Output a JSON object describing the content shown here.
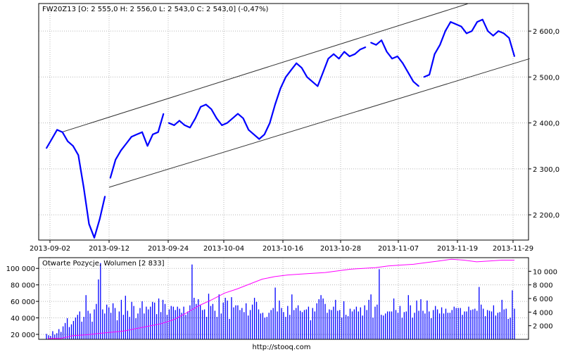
{
  "chart_data": [
    {
      "type": "line",
      "title": "FW20Z13 [O: 2 555,0  H: 2 556,0  L: 2 543,0  C: 2 543,0] (-0,47%)",
      "x_tick_labels": [
        "2013-09-02",
        "2013-09-12",
        "2013-09-24",
        "2013-10-04",
        "2013-10-16",
        "2013-10-28",
        "2013-11-07",
        "2013-11-19",
        "2013-11-29"
      ],
      "y_tick_labels": [
        "2 600,0",
        "2 500,0",
        "2 400,0",
        "2 300,0",
        "2 200,0"
      ],
      "y_ticks": [
        2600,
        2500,
        2400,
        2300,
        2200
      ],
      "ylim": [
        2145,
        2660
      ],
      "grid": true,
      "series": [
        {
          "values": [
            2345,
            2365,
            2385,
            2380,
            2360,
            2350,
            2330,
            2260,
            2180,
            2150,
            2190,
            2240,
            2280,
            2320,
            2340,
            2355,
            2370,
            2375,
            2380,
            2350,
            2375,
            2380,
            2420,
            2400,
            2395,
            2405,
            2395,
            2390,
            2410,
            2435,
            2440,
            2430,
            2410,
            2395,
            2400,
            2410,
            2420,
            2410,
            2385,
            2375,
            2365,
            2375,
            2400,
            2440,
            2475,
            2500,
            2515,
            2530,
            2520,
            2500,
            2490,
            2480,
            2510,
            2540,
            2550,
            2540,
            2555,
            2545,
            2550,
            2560,
            2565,
            2575,
            2570,
            2580,
            2555,
            2540,
            2545,
            2530,
            2510,
            2490,
            2480,
            2500,
            2505,
            2550,
            2570,
            2600,
            2620,
            2615,
            2610,
            2595,
            2600,
            2620,
            2625,
            2600,
            2590,
            2600,
            2595,
            2585,
            2545
          ],
          "gaps_after": [
            11,
            22,
            60,
            70
          ],
          "color": "#0000ff"
        }
      ],
      "channel_lines": [
        {
          "from": [
            "2013-09-04",
            2380
          ],
          "to": [
            "2013-11-21",
            2660
          ]
        },
        {
          "from": [
            "2013-09-12",
            2260
          ],
          "to": [
            "2013-12-02",
            2540
          ]
        }
      ]
    },
    {
      "type": "bar",
      "title": "Otwarte Pozycje, Wolumen [2 833]",
      "left_tick_labels": [
        "100 000",
        "80 000",
        "60 000",
        "40 000",
        "20 000"
      ],
      "left_ticks": [
        100000,
        80000,
        60000,
        40000,
        20000
      ],
      "left_lim": [
        14000,
        113000
      ],
      "right_tick_labels": [
        "10 000",
        "8 000",
        "6 000",
        "4 000",
        "2 000"
      ],
      "right_ticks": [
        10000,
        8000,
        6000,
        4000,
        2000
      ],
      "right_lim": [
        0,
        12000
      ],
      "volume_color": "#0000ff",
      "open_interest_color": "#ff00ff",
      "open_interest": [
        15000,
        15000,
        18500,
        19500,
        21000,
        22500,
        24000,
        27000,
        30000,
        33000,
        38000,
        46000,
        55000,
        62000,
        70000,
        75000,
        81000,
        87000,
        90000,
        92000,
        93000,
        94000,
        95000,
        97000,
        99000,
        100000,
        101000,
        103000,
        104000,
        105000,
        107000,
        109000,
        111000,
        110000,
        108000,
        109000,
        110000,
        110000
      ],
      "volume": [
        800,
        600,
        500,
        1200,
        700,
        900,
        1500,
        1100,
        1900,
        2400,
        3100,
        1800,
        2200,
        2700,
        3200,
        3600,
        4100,
        2600,
        3300,
        6500,
        4200,
        3800,
        2600,
        4400,
        5200,
        8800,
        11200,
        4400,
        3800,
        5100,
        4700,
        3900,
        5300,
        4600,
        2800,
        4100,
        5800,
        3600,
        6400,
        4200,
        3300,
        5500,
        4900,
        3100,
        3800,
        4600,
        5600,
        3800,
        4800,
        4400,
        4800,
        5500,
        5400,
        3700,
        6000,
        4000,
        5800,
        5200,
        3600,
        4400,
        4900,
        4800,
        4300,
        4800,
        4500,
        3900,
        4800,
        3600,
        4100,
        5000,
        11000,
        6100,
        5200,
        5900,
        5000,
        4300,
        4400,
        3300,
        6700,
        4900,
        5200,
        4200,
        3300,
        6600,
        3800,
        5400,
        6100,
        5700,
        3000,
        6200,
        4700,
        5000,
        5000,
        4300,
        4600,
        4000,
        5300,
        3500,
        4300,
        5100,
        6100,
        5500,
        4400,
        3800,
        3900,
        3200,
        3300,
        3900,
        4300,
        4600,
        7600,
        4100,
        5700,
        4600,
        4000,
        3300,
        4900,
        3600,
        6600,
        4300,
        4600,
        5000,
        4200,
        4000,
        4300,
        4400,
        4800,
        2800,
        4600,
        4100,
        5300,
        5900,
        6500,
        6000,
        5200,
        3900,
        4400,
        4300,
        4800,
        5800,
        4200,
        4300,
        3200,
        5600,
        3600,
        3400,
        4500,
        4100,
        4400,
        4800,
        4100,
        4700,
        3500,
        5000,
        4300,
        5800,
        6600,
        3200,
        4800,
        5100,
        10300,
        3600,
        3500,
        3800,
        4100,
        4100,
        4100,
        6000,
        4300,
        3900,
        4900,
        3200,
        4000,
        4100,
        6500,
        5000,
        3200,
        3900,
        5700,
        4200,
        5900,
        4200,
        3800,
        5700,
        4100,
        3100,
        4300,
        4900,
        4400,
        3800,
        4700,
        3800,
        4500,
        3900,
        3900,
        4300,
        4800,
        4600,
        4600,
        4600,
        3600,
        4100,
        4100,
        4800,
        4300,
        4400,
        4500,
        4200,
        7700,
        5100,
        4500,
        3400,
        4300,
        4200,
        4100,
        5000,
        3500,
        3900,
        4000,
        5800,
        4400,
        4500,
        3000,
        3200,
        7200,
        4500
      ]
    }
  ],
  "footer": {
    "source": "http://stooq.com"
  }
}
